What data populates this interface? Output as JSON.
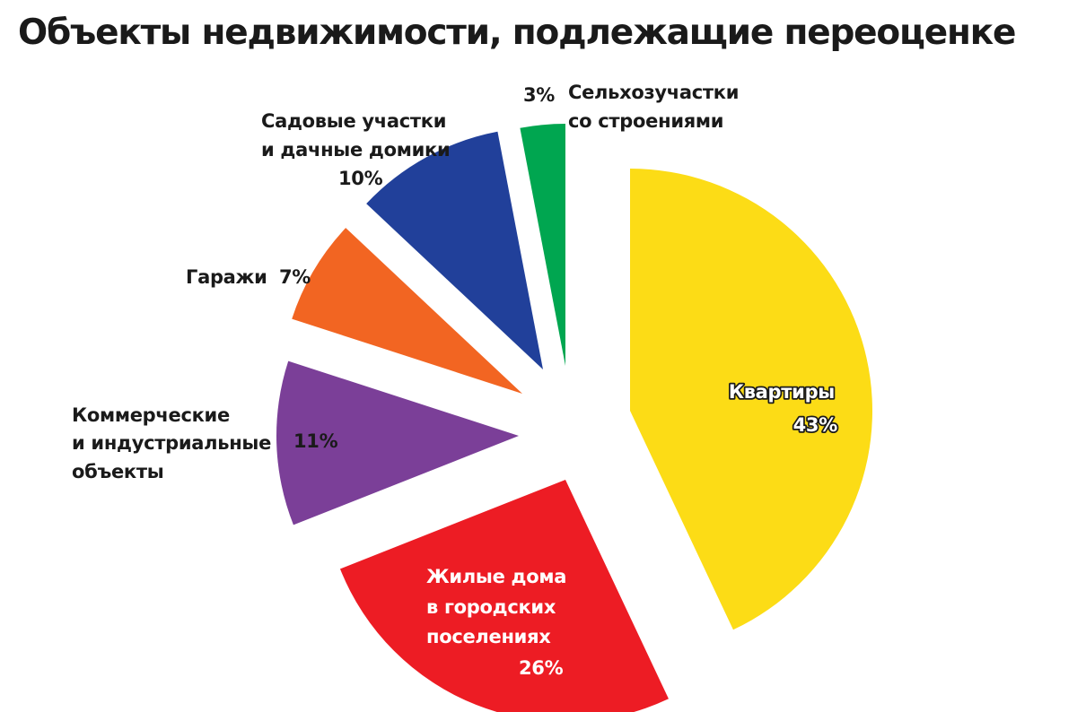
{
  "chart_data": {
    "type": "pie",
    "title": "Объекты недвижимости, подлежащие переоценке",
    "slices": [
      {
        "lines": [
          "Квартиры"
        ],
        "pct": "43%",
        "value": 43,
        "color": "#fcdc16",
        "name_key": "kvartiry"
      },
      {
        "lines": [
          "Жилые дома",
          "в городских",
          "поселениях"
        ],
        "pct": "26%",
        "value": 26,
        "color": "#ed1c24",
        "name_key": "zhilye-doma"
      },
      {
        "lines": [
          "Коммерческие",
          "и индустриальные",
          "объекты"
        ],
        "pct": "11%",
        "value": 11,
        "color": "#7b3f98",
        "name_key": "kommercheskie"
      },
      {
        "lines": [
          "Гаражи"
        ],
        "pct": "7%",
        "value": 7,
        "color": "#f26522",
        "name_key": "garazhi"
      },
      {
        "lines": [
          "Садовые участки",
          "и дачные домики"
        ],
        "pct": "10%",
        "value": 10,
        "color": "#21409a",
        "name_key": "sadovye"
      },
      {
        "lines": [
          "Сельхозучастки",
          "со строениями"
        ],
        "pct": "3%",
        "value": 3,
        "color": "#00a650",
        "name_key": "selkhoz"
      }
    ],
    "legend": "none",
    "exploded": true
  }
}
